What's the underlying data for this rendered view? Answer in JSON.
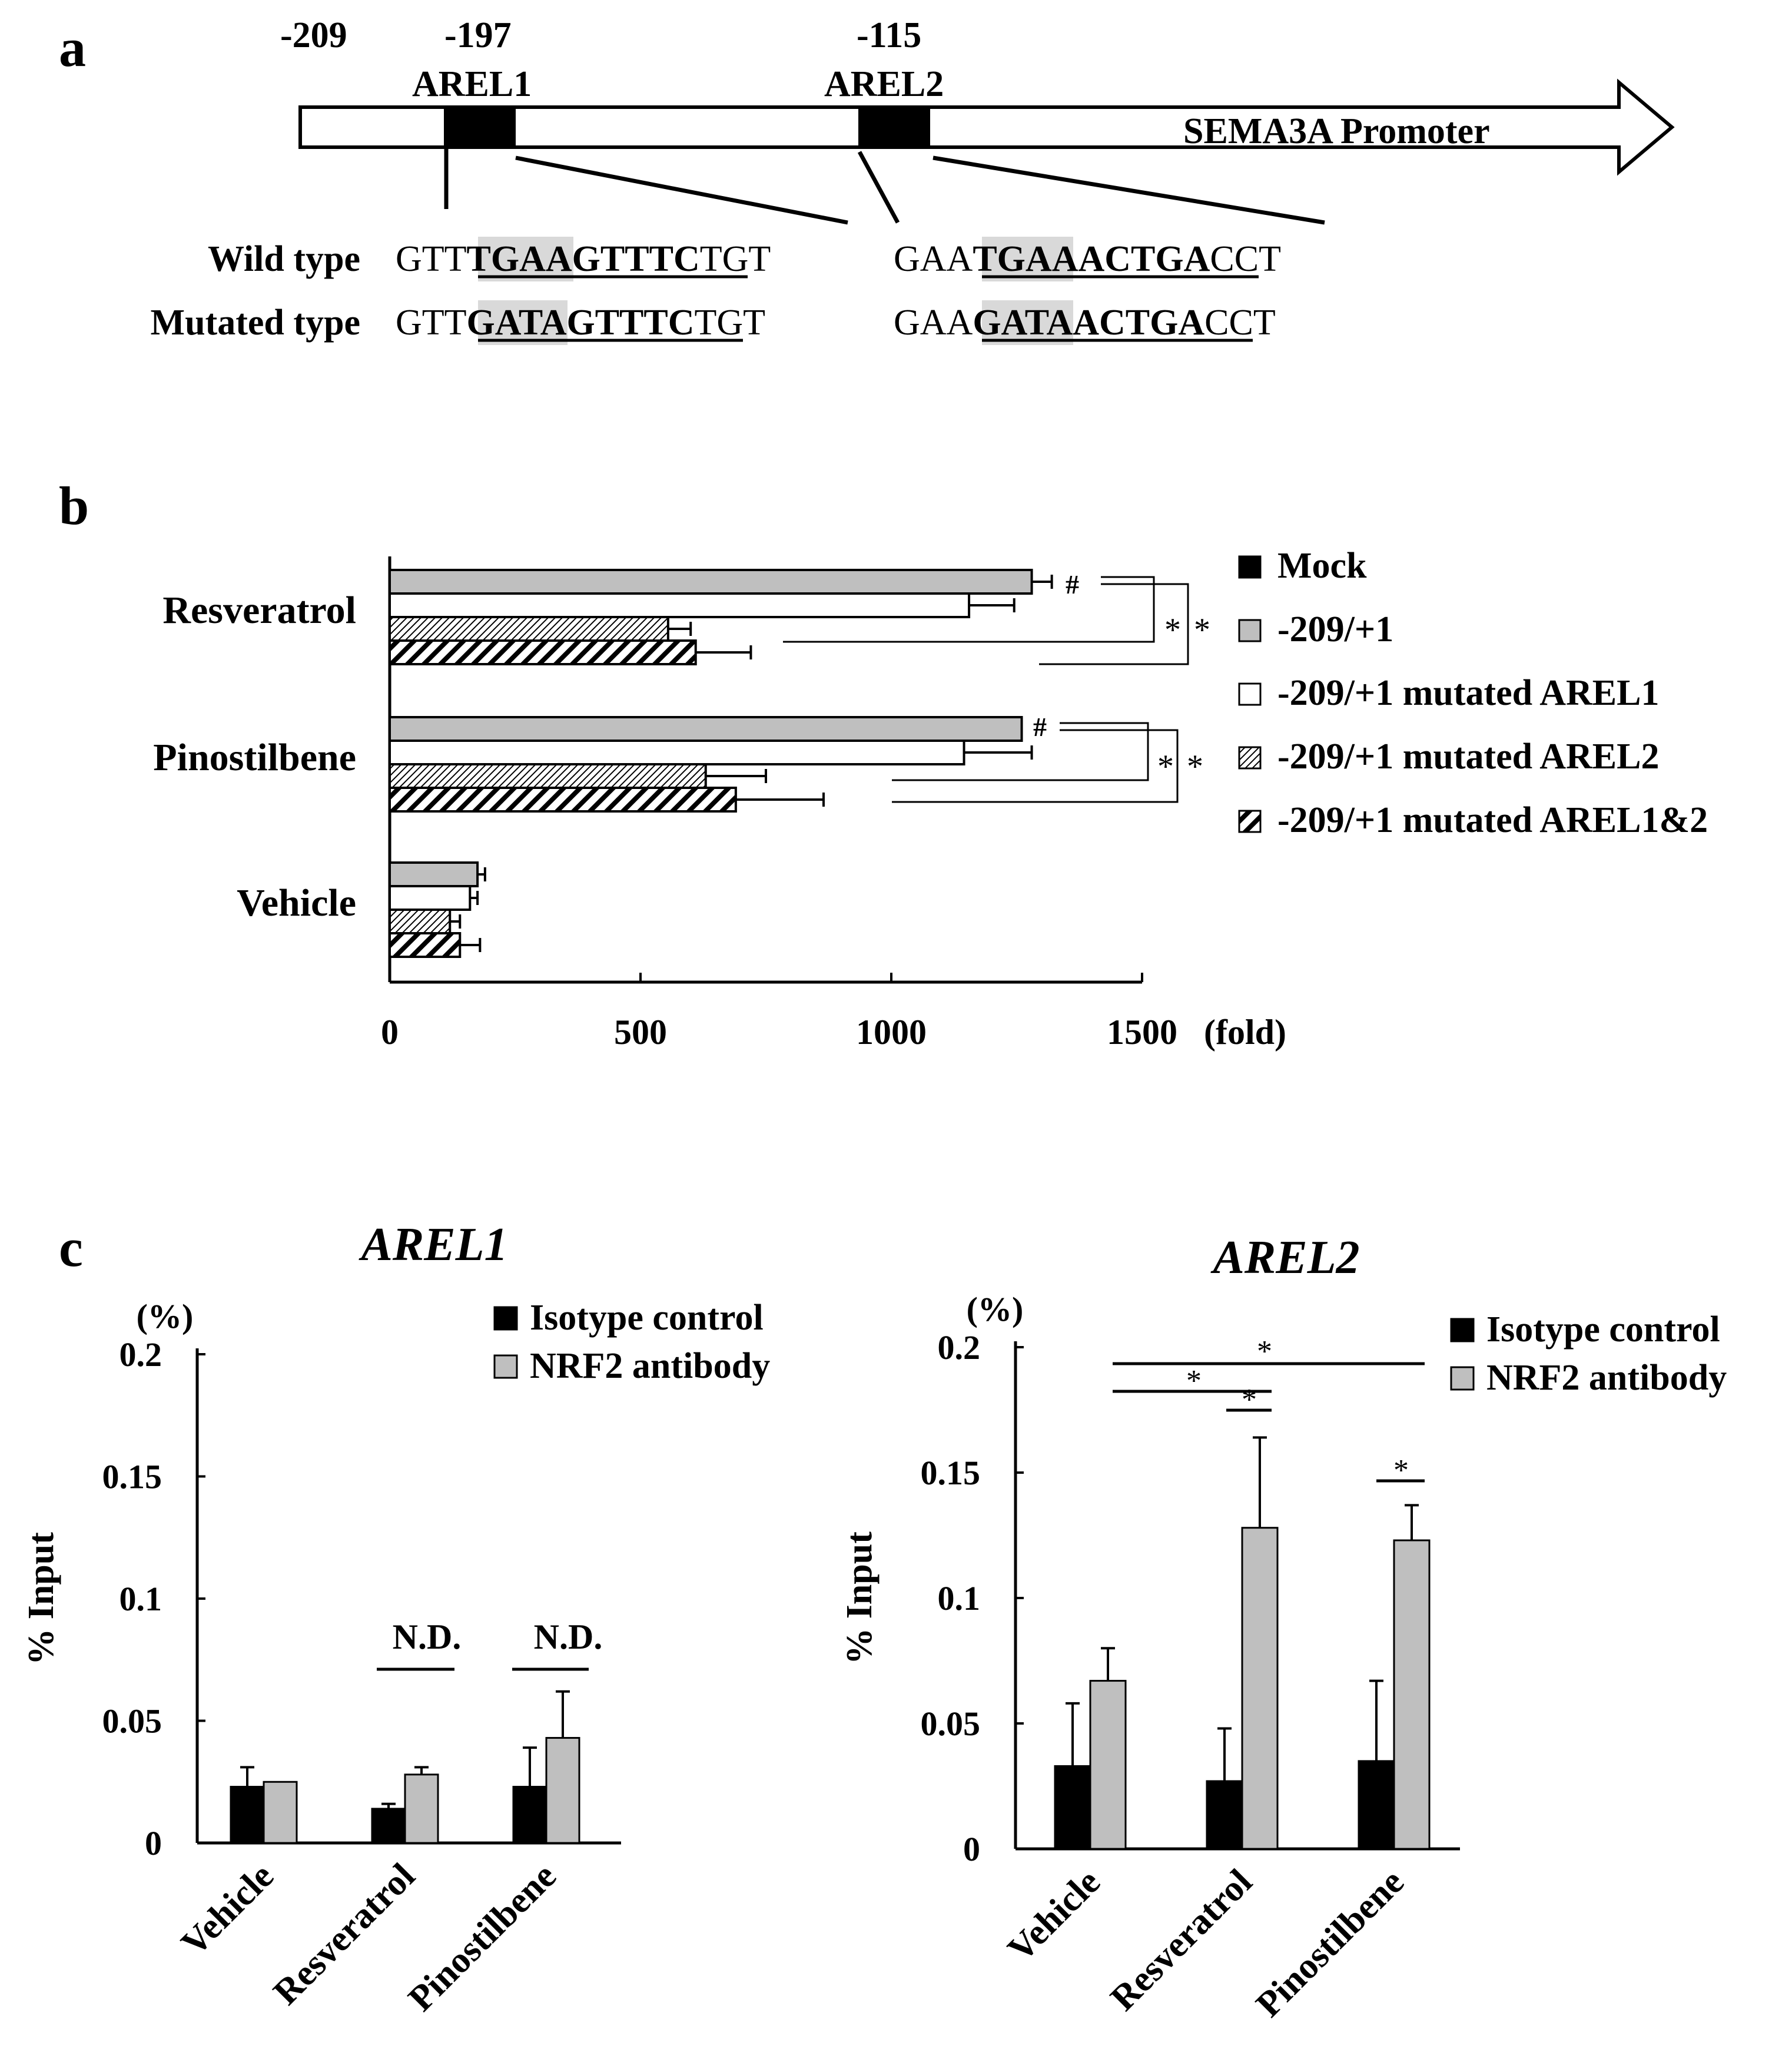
{
  "panel_a": {
    "label": "a",
    "positions": {
      "start": "-209",
      "arel1": "-197",
      "arel2": "-115"
    },
    "elements": {
      "arel1": "AREL1",
      "arel2": "AREL2"
    },
    "promoter": "SEMA3A Promoter",
    "row_labels": {
      "wild": "Wild type",
      "mutated": "Mutated type"
    },
    "sequences": {
      "wild_arel1": {
        "pre": "GTT",
        "hl": "TGA",
        "core": "AGTTTC",
        "post": "TGT"
      },
      "mut_arel1": {
        "pre": "GTT",
        "hl": "GAT",
        "core": "AGTTTC",
        "post": "TGT"
      },
      "wild_arel2": {
        "pre": "GAA",
        "hl": "TGA",
        "core": "AACTGA",
        "post": "CCT"
      },
      "mut_arel2": {
        "pre": "GAA",
        "hl": "GAT",
        "core": "AACTGA",
        "post": "CCT"
      }
    },
    "highlight_color": "#d9d9d9"
  },
  "panel_b": {
    "label": "b",
    "unit": "(fold)",
    "hash": "#",
    "star": "*",
    "legend": [
      "Mock",
      "-209/+1",
      "-209/+1 mutated AREL1",
      "-209/+1 mutated AREL2",
      "-209/+1 mutated AREL1&2"
    ]
  },
  "panel_c": {
    "label": "c",
    "left_title": "AREL1",
    "right_title": "AREL2",
    "ylabel": "% Input",
    "yunit": "(%)",
    "nd": "N.D.",
    "star": "*",
    "legend": [
      "Isotype control",
      "NRF2 antibody"
    ]
  },
  "chart_data": [
    {
      "type": "bar",
      "orientation": "horizontal",
      "categories": [
        "Resveratrol",
        "Pinostilbene",
        "Vehicle"
      ],
      "series": [
        {
          "name": "-209/+1",
          "values": [
            1280,
            1260,
            175
          ],
          "errors": [
            40,
            0,
            15
          ]
        },
        {
          "name": "-209/+1 mutated AREL1",
          "values": [
            1155,
            1145,
            160
          ],
          "errors": [
            90,
            135,
            15
          ]
        },
        {
          "name": "-209/+1 mutated AREL2",
          "values": [
            555,
            630,
            120
          ],
          "errors": [
            45,
            120,
            20
          ]
        },
        {
          "name": "-209/+1 mutated AREL1&2",
          "values": [
            610,
            690,
            140
          ],
          "errors": [
            110,
            175,
            40
          ]
        }
      ],
      "xlim": [
        0,
        1500
      ],
      "xticks": [
        "0",
        "500",
        "1000",
        "1500"
      ],
      "xlabel": "(fold)",
      "grid": false,
      "legend_position": "right"
    },
    {
      "type": "bar",
      "title": "AREL1",
      "categories": [
        "Vehicle",
        "Resveratrol",
        "Pinostilbene"
      ],
      "series": [
        {
          "name": "Isotype control",
          "values": [
            0.023,
            0.014,
            0.023
          ],
          "errors": [
            0.008,
            0.002,
            0.016
          ]
        },
        {
          "name": "NRF2 antibody",
          "values": [
            0.025,
            0.028,
            0.043
          ],
          "errors": [
            0.0,
            0.003,
            0.019
          ]
        }
      ],
      "ylabel": "% Input",
      "ylim": [
        0,
        0.2
      ],
      "yticks": [
        "0",
        "0.05",
        "0.1",
        "0.15",
        "0.2"
      ],
      "annotations": [
        "N.D.",
        "N.D."
      ],
      "legend_position": "top-right"
    },
    {
      "type": "bar",
      "title": "AREL2",
      "categories": [
        "Vehicle",
        "Resveratrol",
        "Pinostilbene"
      ],
      "series": [
        {
          "name": "Isotype control",
          "values": [
            0.033,
            0.027,
            0.035
          ],
          "errors": [
            0.025,
            0.021,
            0.032
          ]
        },
        {
          "name": "NRF2 antibody",
          "values": [
            0.067,
            0.128,
            0.123
          ],
          "errors": [
            0.013,
            0.036,
            0.014
          ]
        }
      ],
      "ylabel": "% Input",
      "ylim": [
        0,
        0.2
      ],
      "yticks": [
        "0",
        "0.05",
        "0.1",
        "0.15",
        "0.2"
      ],
      "annotations": [
        "*",
        "*",
        "*",
        "*"
      ],
      "legend_position": "top-right"
    }
  ]
}
